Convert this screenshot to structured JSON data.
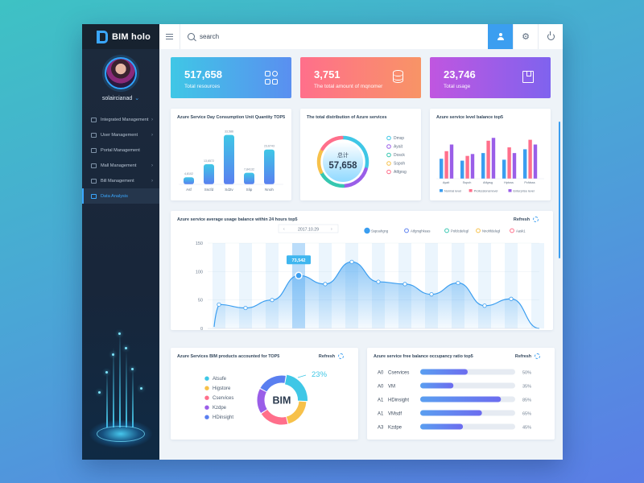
{
  "app": {
    "name": "BIM holo"
  },
  "user": {
    "name": "solaircianad"
  },
  "sidebar": {
    "items": [
      {
        "label": "Integrated Management",
        "arrow": "›"
      },
      {
        "label": "User Management",
        "arrow": "›"
      },
      {
        "label": "Portal Management",
        "arrow": ""
      },
      {
        "label": "Mall Management",
        "arrow": "›"
      },
      {
        "label": "Bill Management",
        "arrow": "›"
      },
      {
        "label": "Data Analysis",
        "arrow": ""
      }
    ]
  },
  "topbar": {
    "search_placeholder": "search"
  },
  "stats": [
    {
      "value": "517,658",
      "label": "Total resources",
      "icon": "grid-icon"
    },
    {
      "value": "3,751",
      "label": "The total amount of mqnomer",
      "icon": "database-icon"
    },
    {
      "value": "23,746",
      "label": "Total usage",
      "icon": "book-icon"
    }
  ],
  "colors": {
    "accent": "#3b9ef0",
    "cyan": "#3fc7e6",
    "pink": "#ff6f8b",
    "purple": "#9a5ee8",
    "yellow": "#f7c14a",
    "green": "#36c7b0"
  },
  "chart_data": [
    {
      "type": "bar",
      "title": "Azure Service Day Consumption Unit Quantity TOP5",
      "categories": [
        "Asf",
        "Sscfd",
        "Sd2v",
        "Slip",
        "Nnoh"
      ],
      "values": [
        4.8102,
        13.6572,
        33.586,
        7.84132,
        23.6743
      ],
      "value_labels": [
        "4,8102",
        "13,6572",
        "33,586",
        "7,84132",
        "23,6743"
      ]
    },
    {
      "type": "pie",
      "title": "The total distribution of Azure services",
      "center_label": "总计",
      "center_value": "57,658",
      "legend": [
        "Dmsp",
        "Ayait",
        "Dosck",
        "Sspoh",
        "Atfgrsg"
      ],
      "values": [
        30,
        20,
        18,
        16,
        16
      ]
    },
    {
      "type": "bar",
      "title": "Azure service level balance top5",
      "categories": [
        "Ayait",
        "Sspoh",
        "Atfgrsg",
        "Hptoss",
        "Pcfdsss"
      ],
      "series": [
        {
          "name": "Normal level",
          "values": [
            42,
            38,
            54,
            40,
            62
          ]
        },
        {
          "name": "Professional level",
          "values": [
            58,
            48,
            80,
            66,
            82
          ]
        },
        {
          "name": "Enterprise level",
          "values": [
            72,
            52,
            86,
            54,
            72
          ]
        }
      ],
      "ylim": [
        0,
        100
      ]
    },
    {
      "type": "area",
      "title": "Azure service average usage balance within 24 hours top5",
      "date": "2017.10.29",
      "categories": [
        "00:00",
        "00:02",
        "00:04",
        "00:06",
        "00:08",
        "00:10",
        "00:12",
        "00:14",
        "00:16",
        "00:18",
        "00:20",
        "00:22",
        "00:24"
      ],
      "values": [
        42,
        36,
        50,
        93,
        78,
        117,
        82,
        78,
        60,
        80,
        40,
        52,
        0
      ],
      "highlight": {
        "x": "00:06",
        "label": "73,542"
      },
      "ylim": [
        0,
        150
      ],
      "yticks": [
        0,
        50,
        100,
        150
      ],
      "legend": [
        "Sspoahgng",
        "Atfgrsghkeas",
        "Pofdcdefegl",
        "Nnohfdelegl",
        "Aask1"
      ],
      "refresh_label": "Refresh"
    },
    {
      "type": "pie",
      "title": "Azure Services BIM products accounted for TOP5",
      "center_label": "BIM",
      "highlight_value": "23%",
      "legend": [
        "Atsufe",
        "Higstore",
        "Cservices",
        "Kzdpe",
        "HDinsight"
      ],
      "values": [
        23,
        20,
        20,
        17,
        20
      ],
      "refresh_label": "Refresh"
    },
    {
      "type": "bar",
      "title": "Azure service free balance occupancy ratio top5",
      "rows": [
        {
          "code": "A0",
          "name": "Cservices",
          "value": 50,
          "label": "50%"
        },
        {
          "code": "A0",
          "name": "VM",
          "value": 35,
          "label": "35%"
        },
        {
          "code": "A1",
          "name": "HDinsight",
          "value": 85,
          "label": "85%"
        },
        {
          "code": "A1",
          "name": "VMsdf",
          "value": 65,
          "label": "65%"
        },
        {
          "code": "A3",
          "name": "Kzdpe",
          "value": 45,
          "label": "45%"
        }
      ],
      "refresh_label": "Refresh"
    }
  ]
}
